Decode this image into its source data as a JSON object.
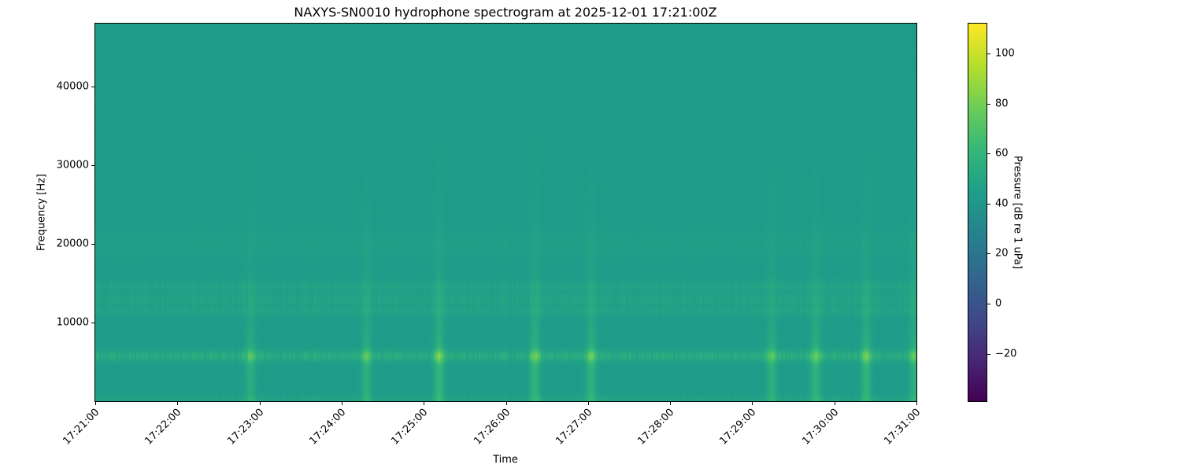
{
  "chart_data": {
    "type": "heatmap",
    "title": "NAXYS-SN0010 hydrophone spectrogram at 2025-12-01 17:21:00Z",
    "xlabel": "Time",
    "ylabel": "Frequency [Hz]",
    "colorbar_label": "Pressure [dB re 1 uPa]",
    "colormap": "viridis",
    "x_ticks": [
      "17:21:00",
      "17:22:00",
      "17:23:00",
      "17:24:00",
      "17:25:00",
      "17:26:00",
      "17:27:00",
      "17:28:00",
      "17:29:00",
      "17:30:00",
      "17:31:00"
    ],
    "xlim": [
      "17:21:00",
      "17:31:00"
    ],
    "y_ticks": [
      10000,
      20000,
      30000,
      40000
    ],
    "ylim": [
      0,
      48000
    ],
    "colorbar_ticks": [
      -20,
      0,
      20,
      40,
      60,
      80,
      100
    ],
    "clim": [
      -39,
      112
    ],
    "background_level_db": 44,
    "bands": [
      {
        "freq_hz": 300,
        "width_hz": 500,
        "level_db": 52
      },
      {
        "freq_hz": 5800,
        "width_hz": 700,
        "level_db": 62
      },
      {
        "freq_hz": 11500,
        "width_hz": 600,
        "level_db": 52
      },
      {
        "freq_hz": 13000,
        "width_hz": 800,
        "level_db": 53
      },
      {
        "freq_hz": 14700,
        "width_hz": 700,
        "level_db": 52
      },
      {
        "freq_hz": 20000,
        "width_hz": 1500,
        "level_db": 48
      }
    ],
    "bursts": [
      {
        "time": "17:22:53",
        "level_db": 66
      },
      {
        "time": "17:24:18",
        "level_db": 68
      },
      {
        "time": "17:25:11",
        "level_db": 76
      },
      {
        "time": "17:26:21",
        "level_db": 74
      },
      {
        "time": "17:27:02",
        "level_db": 72
      },
      {
        "time": "17:29:14",
        "level_db": 68
      },
      {
        "time": "17:29:46",
        "level_db": 72
      },
      {
        "time": "17:30:23",
        "level_db": 74
      },
      {
        "time": "17:30:58",
        "level_db": 68
      }
    ]
  }
}
